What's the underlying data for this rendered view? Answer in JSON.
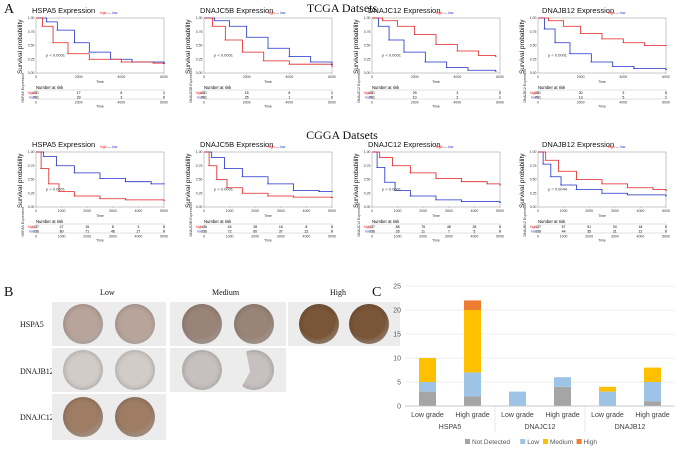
{
  "figure": {
    "label_a": "A",
    "label_b": "B",
    "label_c": "C",
    "tcga_title": "TCGA Datsets",
    "cgga_title": "CGGA Datsets"
  },
  "legend": {
    "high": "high",
    "low": "low",
    "high_color": "#e02020",
    "low_color": "#2030c8"
  },
  "km_common": {
    "y_label": "Survival probability",
    "x_label": "Time",
    "risk_title": "Number at risk",
    "y_ticks": [
      "0.00",
      "0.25",
      "0.50",
      "0.75",
      "1.00"
    ]
  },
  "km_plots": [
    {
      "gene": "HSPA5",
      "title": "HSPA5  Expression",
      "p": "p < 0.0001",
      "x_ticks": [
        "0",
        "2000",
        "4000",
        "6000"
      ],
      "xmax": 6000,
      "tick_step": 2000,
      "high": [
        [
          0,
          1
        ],
        [
          300,
          0.85
        ],
        [
          800,
          0.55
        ],
        [
          1500,
          0.35
        ],
        [
          2500,
          0.25
        ],
        [
          4000,
          0.2
        ],
        [
          5500,
          0.18
        ],
        [
          6000,
          0.17
        ]
      ],
      "low": [
        [
          0,
          1
        ],
        [
          500,
          0.93
        ],
        [
          1000,
          0.78
        ],
        [
          1800,
          0.55
        ],
        [
          2500,
          0.38
        ],
        [
          3500,
          0.25
        ],
        [
          4500,
          0.2
        ],
        [
          6000,
          0.18
        ]
      ],
      "risk_label": "HSPA5 Expression",
      "risk_high": [
        "281",
        "17",
        "6",
        "1"
      ],
      "risk_low": [
        "281",
        "29",
        "3",
        "0"
      ]
    },
    {
      "gene": "DNAJC5B",
      "title": "DNAJC5B  Expression",
      "p": "p < 0.0001",
      "x_ticks": [
        "0",
        "2000",
        "4000",
        "6000"
      ],
      "xmax": 6000,
      "tick_step": 2000,
      "high": [
        [
          0,
          1
        ],
        [
          400,
          0.85
        ],
        [
          1000,
          0.6
        ],
        [
          1800,
          0.38
        ],
        [
          2800,
          0.22
        ],
        [
          4000,
          0.16
        ],
        [
          6000,
          0.12
        ]
      ],
      "low": [
        [
          0,
          1
        ],
        [
          500,
          0.95
        ],
        [
          1200,
          0.85
        ],
        [
          2000,
          0.65
        ],
        [
          3000,
          0.45
        ],
        [
          4000,
          0.3
        ],
        [
          5000,
          0.2
        ],
        [
          6000,
          0.15
        ]
      ],
      "risk_label": "DNAJC5B Expression",
      "risk_high": [
        "281",
        "15",
        "8",
        "1"
      ],
      "risk_low": [
        "281",
        "25",
        "1",
        "0"
      ]
    },
    {
      "gene": "DNAJC12",
      "title": "DNAJC12  Expression",
      "p": "p < 0.0001",
      "x_ticks": [
        "0",
        "2000",
        "4000",
        "6000"
      ],
      "xmax": 6000,
      "tick_step": 2000,
      "high": [
        [
          0,
          1
        ],
        [
          500,
          0.95
        ],
        [
          1200,
          0.85
        ],
        [
          2000,
          0.7
        ],
        [
          3000,
          0.52
        ],
        [
          4000,
          0.4
        ],
        [
          5000,
          0.32
        ],
        [
          5800,
          0.3
        ]
      ],
      "low": [
        [
          0,
          1
        ],
        [
          300,
          0.85
        ],
        [
          800,
          0.6
        ],
        [
          1500,
          0.38
        ],
        [
          2500,
          0.2
        ],
        [
          3500,
          0.1
        ],
        [
          4500,
          0.05
        ],
        [
          5800,
          0.03
        ]
      ],
      "risk_label": "DNAJC12 Expression",
      "risk_high": [
        "281",
        "29",
        "3",
        "0"
      ],
      "risk_low": [
        "281",
        "10",
        "2",
        "1"
      ]
    },
    {
      "gene": "DNAJB12",
      "title": "DNAJB12  Expression",
      "p": "p < 0.0001",
      "x_ticks": [
        "0",
        "2000",
        "4000",
        "6000"
      ],
      "xmax": 6000,
      "tick_step": 2000,
      "high": [
        [
          0,
          1
        ],
        [
          500,
          0.95
        ],
        [
          1200,
          0.85
        ],
        [
          2000,
          0.72
        ],
        [
          3000,
          0.62
        ],
        [
          4000,
          0.55
        ],
        [
          5000,
          0.5
        ],
        [
          6000,
          0.5
        ]
      ],
      "low": [
        [
          0,
          1
        ],
        [
          300,
          0.8
        ],
        [
          800,
          0.55
        ],
        [
          1500,
          0.35
        ],
        [
          2500,
          0.2
        ],
        [
          3500,
          0.12
        ],
        [
          4500,
          0.08
        ],
        [
          6000,
          0.06
        ]
      ],
      "risk_label": "DNAJB12 Expression",
      "risk_high": [
        "281",
        "30",
        "3",
        "0"
      ],
      "risk_low": [
        "281",
        "13",
        "5",
        "1"
      ]
    },
    {
      "gene": "HSPA5",
      "title": "HSPA5  Expression",
      "p": "p < 0.0001",
      "x_ticks": [
        "0",
        "1000",
        "2000",
        "3000",
        "4000",
        "5000"
      ],
      "xmax": 5000,
      "tick_step": 1000,
      "high": [
        [
          0,
          1
        ],
        [
          200,
          0.7
        ],
        [
          500,
          0.42
        ],
        [
          900,
          0.28
        ],
        [
          1500,
          0.2
        ],
        [
          2500,
          0.15
        ],
        [
          3500,
          0.13
        ],
        [
          5000,
          0.12
        ]
      ],
      "low": [
        [
          0,
          1
        ],
        [
          300,
          0.92
        ],
        [
          800,
          0.75
        ],
        [
          1500,
          0.62
        ],
        [
          2500,
          0.52
        ],
        [
          3500,
          0.46
        ],
        [
          4500,
          0.42
        ],
        [
          5000,
          0.42
        ]
      ],
      "risk_label": "HSPA5 Expression",
      "risk_high": [
        "137",
        "27",
        "15",
        "8",
        "3",
        "0"
      ],
      "risk_low": [
        "136",
        "80",
        "71",
        "48",
        "27",
        "0"
      ]
    },
    {
      "gene": "DNAJC5B",
      "title": "DNAJC5B  Expression",
      "p": "p < 0.0001",
      "x_ticks": [
        "0",
        "1000",
        "2000",
        "3000",
        "4000",
        "5000"
      ],
      "xmax": 5000,
      "tick_step": 1000,
      "high": [
        [
          0,
          1
        ],
        [
          200,
          0.75
        ],
        [
          500,
          0.5
        ],
        [
          900,
          0.35
        ],
        [
          1500,
          0.25
        ],
        [
          2500,
          0.2
        ],
        [
          3500,
          0.18
        ],
        [
          5000,
          0.17
        ]
      ],
      "low": [
        [
          0,
          1
        ],
        [
          300,
          0.9
        ],
        [
          800,
          0.7
        ],
        [
          1500,
          0.55
        ],
        [
          2500,
          0.42
        ],
        [
          3500,
          0.3
        ],
        [
          4500,
          0.28
        ],
        [
          5000,
          0.28
        ]
      ],
      "risk_label": "DNAJC5B Expression",
      "risk_high": [
        "136",
        "44",
        "28",
        "16",
        "8",
        "0"
      ],
      "risk_low": [
        "136",
        "72",
        "60",
        "37",
        "22",
        "0"
      ]
    },
    {
      "gene": "DNAJC12",
      "title": "DNAJC12  Expression",
      "p": "p < 0.0001",
      "x_ticks": [
        "0",
        "1000",
        "2000",
        "3000",
        "4000",
        "5000"
      ],
      "xmax": 5000,
      "tick_step": 1000,
      "high": [
        [
          0,
          1
        ],
        [
          300,
          0.9
        ],
        [
          800,
          0.75
        ],
        [
          1500,
          0.62
        ],
        [
          2500,
          0.52
        ],
        [
          3500,
          0.46
        ],
        [
          4500,
          0.42
        ],
        [
          5000,
          0.4
        ]
      ],
      "low": [
        [
          0,
          1
        ],
        [
          200,
          0.72
        ],
        [
          500,
          0.45
        ],
        [
          900,
          0.3
        ],
        [
          1500,
          0.2
        ],
        [
          2500,
          0.13
        ],
        [
          3500,
          0.1
        ],
        [
          5000,
          0.08
        ]
      ],
      "risk_label": "DNAJC12 Expression",
      "risk_high": [
        "137",
        "88",
        "75",
        "48",
        "28",
        "0"
      ],
      "risk_low": [
        "136",
        "26",
        "11",
        "7",
        "5",
        "0"
      ]
    },
    {
      "gene": "DNAJB12",
      "title": "DNAJB12  Expression",
      "p": "p = 0.0044",
      "x_ticks": [
        "0",
        "1000",
        "2000",
        "3000",
        "4000",
        "5000"
      ],
      "xmax": 5000,
      "tick_step": 1000,
      "high": [
        [
          0,
          1
        ],
        [
          300,
          0.85
        ],
        [
          800,
          0.65
        ],
        [
          1500,
          0.5
        ],
        [
          2500,
          0.42
        ],
        [
          3500,
          0.35
        ],
        [
          4500,
          0.32
        ],
        [
          5000,
          0.3
        ]
      ],
      "low": [
        [
          0,
          1
        ],
        [
          200,
          0.78
        ],
        [
          500,
          0.55
        ],
        [
          900,
          0.4
        ],
        [
          1500,
          0.32
        ],
        [
          2500,
          0.25
        ],
        [
          3500,
          0.22
        ],
        [
          5000,
          0.2
        ]
      ],
      "risk_label": "DNAJB12 Expression",
      "risk_high": [
        "137",
        "57",
        "51",
        "34",
        "18",
        "0"
      ],
      "risk_low": [
        "136",
        "44",
        "35",
        "21",
        "12",
        "0"
      ]
    }
  ],
  "ihc": {
    "levels": [
      "Low",
      "Medium",
      "High"
    ],
    "genes": [
      "HSPA5",
      "DNAJB12",
      "DNAJC12"
    ],
    "cells": [
      {
        "gene": "HSPA5",
        "level": "Low",
        "stain": "#b8a49a"
      },
      {
        "gene": "HSPA5",
        "level": "Medium",
        "stain": "#9a8478"
      },
      {
        "gene": "HSPA5",
        "level": "High",
        "stain": "#7a5638"
      },
      {
        "gene": "DNAJB12",
        "level": "Low",
        "stain": "#d2ccc8"
      },
      {
        "gene": "DNAJB12",
        "level": "Medium",
        "stain": "#c6c0be"
      },
      {
        "gene": "DNAJC12",
        "level": "Low",
        "stain": "#9e7d64"
      }
    ]
  },
  "chart_data": {
    "type": "bar",
    "stacked": true,
    "title": "",
    "xlabel": "",
    "ylabel": "",
    "ylim": [
      0,
      25
    ],
    "y_ticks": [
      0,
      5,
      10,
      15,
      20,
      25
    ],
    "groups": [
      "HSPA5",
      "DNAJC12",
      "DNAJB12"
    ],
    "categories": [
      "Low grade",
      "High grade",
      "Low grade",
      "High grade",
      "Low grade",
      "High grade"
    ],
    "series": [
      {
        "name": "Not Detected",
        "color": "#a5a5a5",
        "values": [
          3,
          2,
          0,
          4,
          0,
          1
        ]
      },
      {
        "name": "Low",
        "color": "#9dc3e6",
        "values": [
          2,
          5,
          3,
          2,
          3,
          4
        ]
      },
      {
        "name": "Medium",
        "color": "#ffc000",
        "values": [
          5,
          13,
          0,
          0,
          1,
          3
        ]
      },
      {
        "name": "High",
        "color": "#ed7d31",
        "values": [
          0,
          2,
          0,
          0,
          0,
          0
        ]
      }
    ],
    "legend_position": "bottom",
    "grid": true
  }
}
